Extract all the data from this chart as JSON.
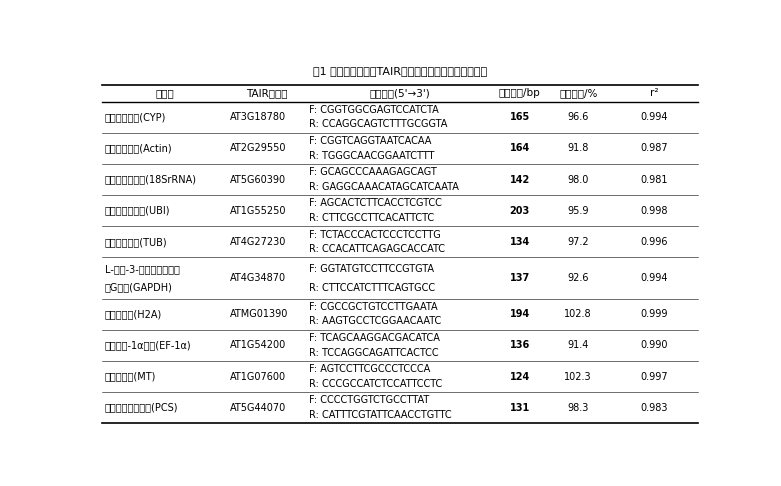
{
  "title": "表1 十个候选基因的TAIR登录号、引物序列及扩增特点",
  "headers": [
    "基因名",
    "TAIR登录号",
    "引物序列(5'→3')",
    "片段大小/bp",
    "扩增效率/%",
    "r²"
  ],
  "col_starts": [
    0.008,
    0.215,
    0.345,
    0.655,
    0.74,
    0.848
  ],
  "col_ends": [
    0.215,
    0.345,
    0.655,
    0.74,
    0.848,
    0.992
  ],
  "rows": [
    {
      "gene_lines": [
        "亲环蛋白基因(CYP)"
      ],
      "tair": "AT3G18780",
      "primers": [
        "F: CGGTGGCGAGTCCATCTA",
        "R: CCAGGCAGTCTTTGCGGTA"
      ],
      "size": "165",
      "efficiency": "96.6",
      "r2": "0.994"
    },
    {
      "gene_lines": [
        "肌动蛋白基因(Actin)"
      ],
      "tair": "AT2G29550",
      "primers": [
        "F: CGGTCAGGTAATCACAA",
        "R: TGGGCAACGGAATCTTT"
      ],
      "size": "164",
      "efficiency": "91.8",
      "r2": "0.987"
    },
    {
      "gene_lines": [
        "核糖体亚单基对(18SrRNA)"
      ],
      "tair": "AT5G60390",
      "primers": [
        "F: GCAGCCCAAAGAGCAGT",
        "R: GAGGCAAACATAGCATCAATA"
      ],
      "size": "142",
      "efficiency": "98.0",
      "r2": "0.981"
    },
    {
      "gene_lines": [
        "泛素连接酶基因(UBI)"
      ],
      "tair": "AT1G55250",
      "primers": [
        "F: AGCACTCTTCACCTCGTCC",
        "R: CTTCGCCTTCACATTCTC"
      ],
      "size": "203",
      "efficiency": "95.9",
      "r2": "0.998"
    },
    {
      "gene_lines": [
        "微管蛋白基因(TUB)"
      ],
      "tair": "AT4G27230",
      "primers": [
        "F: TCTACCCACTCCCTCCTTG",
        "R: CCACATTCAGAGCACCATC"
      ],
      "size": "134",
      "efficiency": "97.2",
      "r2": "0.996"
    },
    {
      "gene_lines": [
        "L-油酯-3-磷酸山梨糖脱氢",
        "酶G基因(GAPDH)"
      ],
      "tair": "AT4G34870",
      "primers": [
        "F: GGTATGTCCTTCCGTGTA",
        "R: CTTCCATCTTTCAGTGCC"
      ],
      "size": "137",
      "efficiency": "92.6",
      "r2": "0.994"
    },
    {
      "gene_lines": [
        "组蛋白基因(H2A)"
      ],
      "tair": "ATMG01390",
      "primers": [
        "F: CGCCGCTGTCCTTGAATA",
        "R: AAGTGCCTCGGAACAATC"
      ],
      "size": "194",
      "efficiency": "102.8",
      "r2": "0.999"
    },
    {
      "gene_lines": [
        "延伸因子-1α基因(EF-1α)"
      ],
      "tair": "AT1G54200",
      "primers": [
        "F: TCAGCAAGGACGACATCA",
        "R: TCCAGGCAGATTCACTCC"
      ],
      "size": "136",
      "efficiency": "91.4",
      "r2": "0.990"
    },
    {
      "gene_lines": [
        "金属硫蛋白(MT)"
      ],
      "tair": "AT1G07600",
      "primers": [
        "F: AGTCCTTCGCCCTCCCA",
        "R: CCCGCCATCTCCATTCCTC"
      ],
      "size": "124",
      "efficiency": "102.3",
      "r2": "0.997"
    },
    {
      "gene_lines": [
        "植物螯合素合成酶(PCS)"
      ],
      "tair": "AT5G44070",
      "primers": [
        "F: CCCCTGGTCTGCCTTAT",
        "R: CATTTCGTATTCAACCTGTTC"
      ],
      "size": "131",
      "efficiency": "98.3",
      "r2": "0.983"
    }
  ],
  "bg_color": "#ffffff",
  "line_color": "#000000",
  "font_size": 7.0,
  "header_font_size": 7.5
}
